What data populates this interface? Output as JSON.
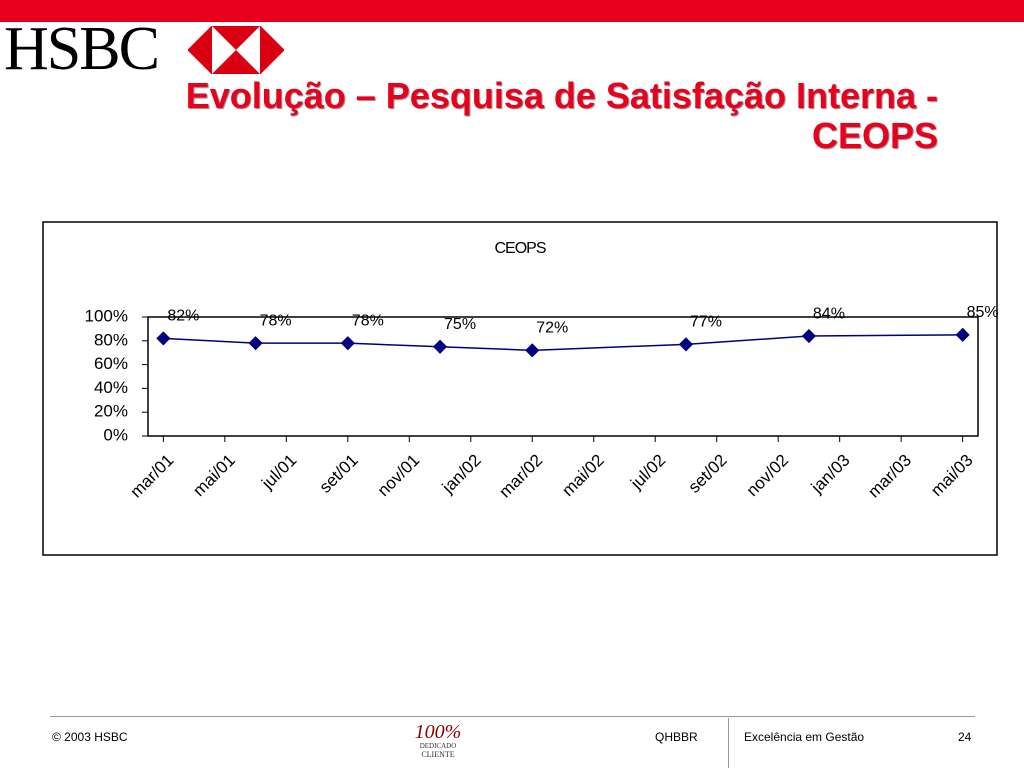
{
  "logo": "HSBC",
  "title": "Evolução – Pesquisa de Satisfação Interna - CEOPS",
  "chart_data": {
    "type": "line",
    "title": "CEOPS",
    "x": [
      0,
      1.5,
      3,
      4.5,
      6,
      8.5,
      10.5,
      13
    ],
    "series": [
      {
        "name": "CEOPS",
        "color": "#000080",
        "values": [
          82,
          78,
          78,
          75,
          72,
          77,
          84,
          85
        ],
        "value_labels": [
          "82%",
          "78%",
          "78%",
          "75%",
          "72%",
          "77%",
          "84%",
          "85%"
        ]
      }
    ],
    "xlim": [
      -0.25,
      13.25
    ],
    "xticks": [
      {
        "value": 0,
        "label": "mar/01"
      },
      {
        "value": 1,
        "label": "mai/01"
      },
      {
        "value": 2,
        "label": "jul/01"
      },
      {
        "value": 3,
        "label": "set/01"
      },
      {
        "value": 4,
        "label": "nov/01"
      },
      {
        "value": 5,
        "label": "jan/02"
      },
      {
        "value": 6,
        "label": "mar/02"
      },
      {
        "value": 7,
        "label": "mai/02"
      },
      {
        "value": 8,
        "label": "jul/02"
      },
      {
        "value": 9,
        "label": "set/02"
      },
      {
        "value": 10,
        "label": "nov/02"
      },
      {
        "value": 11,
        "label": "jan/03"
      },
      {
        "value": 12,
        "label": "mar/03"
      },
      {
        "value": 13,
        "label": "mai/03"
      }
    ],
    "ylim": [
      0,
      100
    ],
    "yticks": [
      {
        "value": 0,
        "label": "0%"
      },
      {
        "value": 20,
        "label": "20%"
      },
      {
        "value": 40,
        "label": "40%"
      },
      {
        "value": 60,
        "label": "60%"
      },
      {
        "value": 80,
        "label": "80%"
      },
      {
        "value": 100,
        "label": "100%"
      }
    ]
  },
  "footer": {
    "copyright": "© 2003 HSBC",
    "badge": [
      "100%",
      "DEDICADO",
      "CLIENTE"
    ],
    "code": "QHBBR",
    "program": "Excelência em Gestão",
    "page": "24"
  }
}
